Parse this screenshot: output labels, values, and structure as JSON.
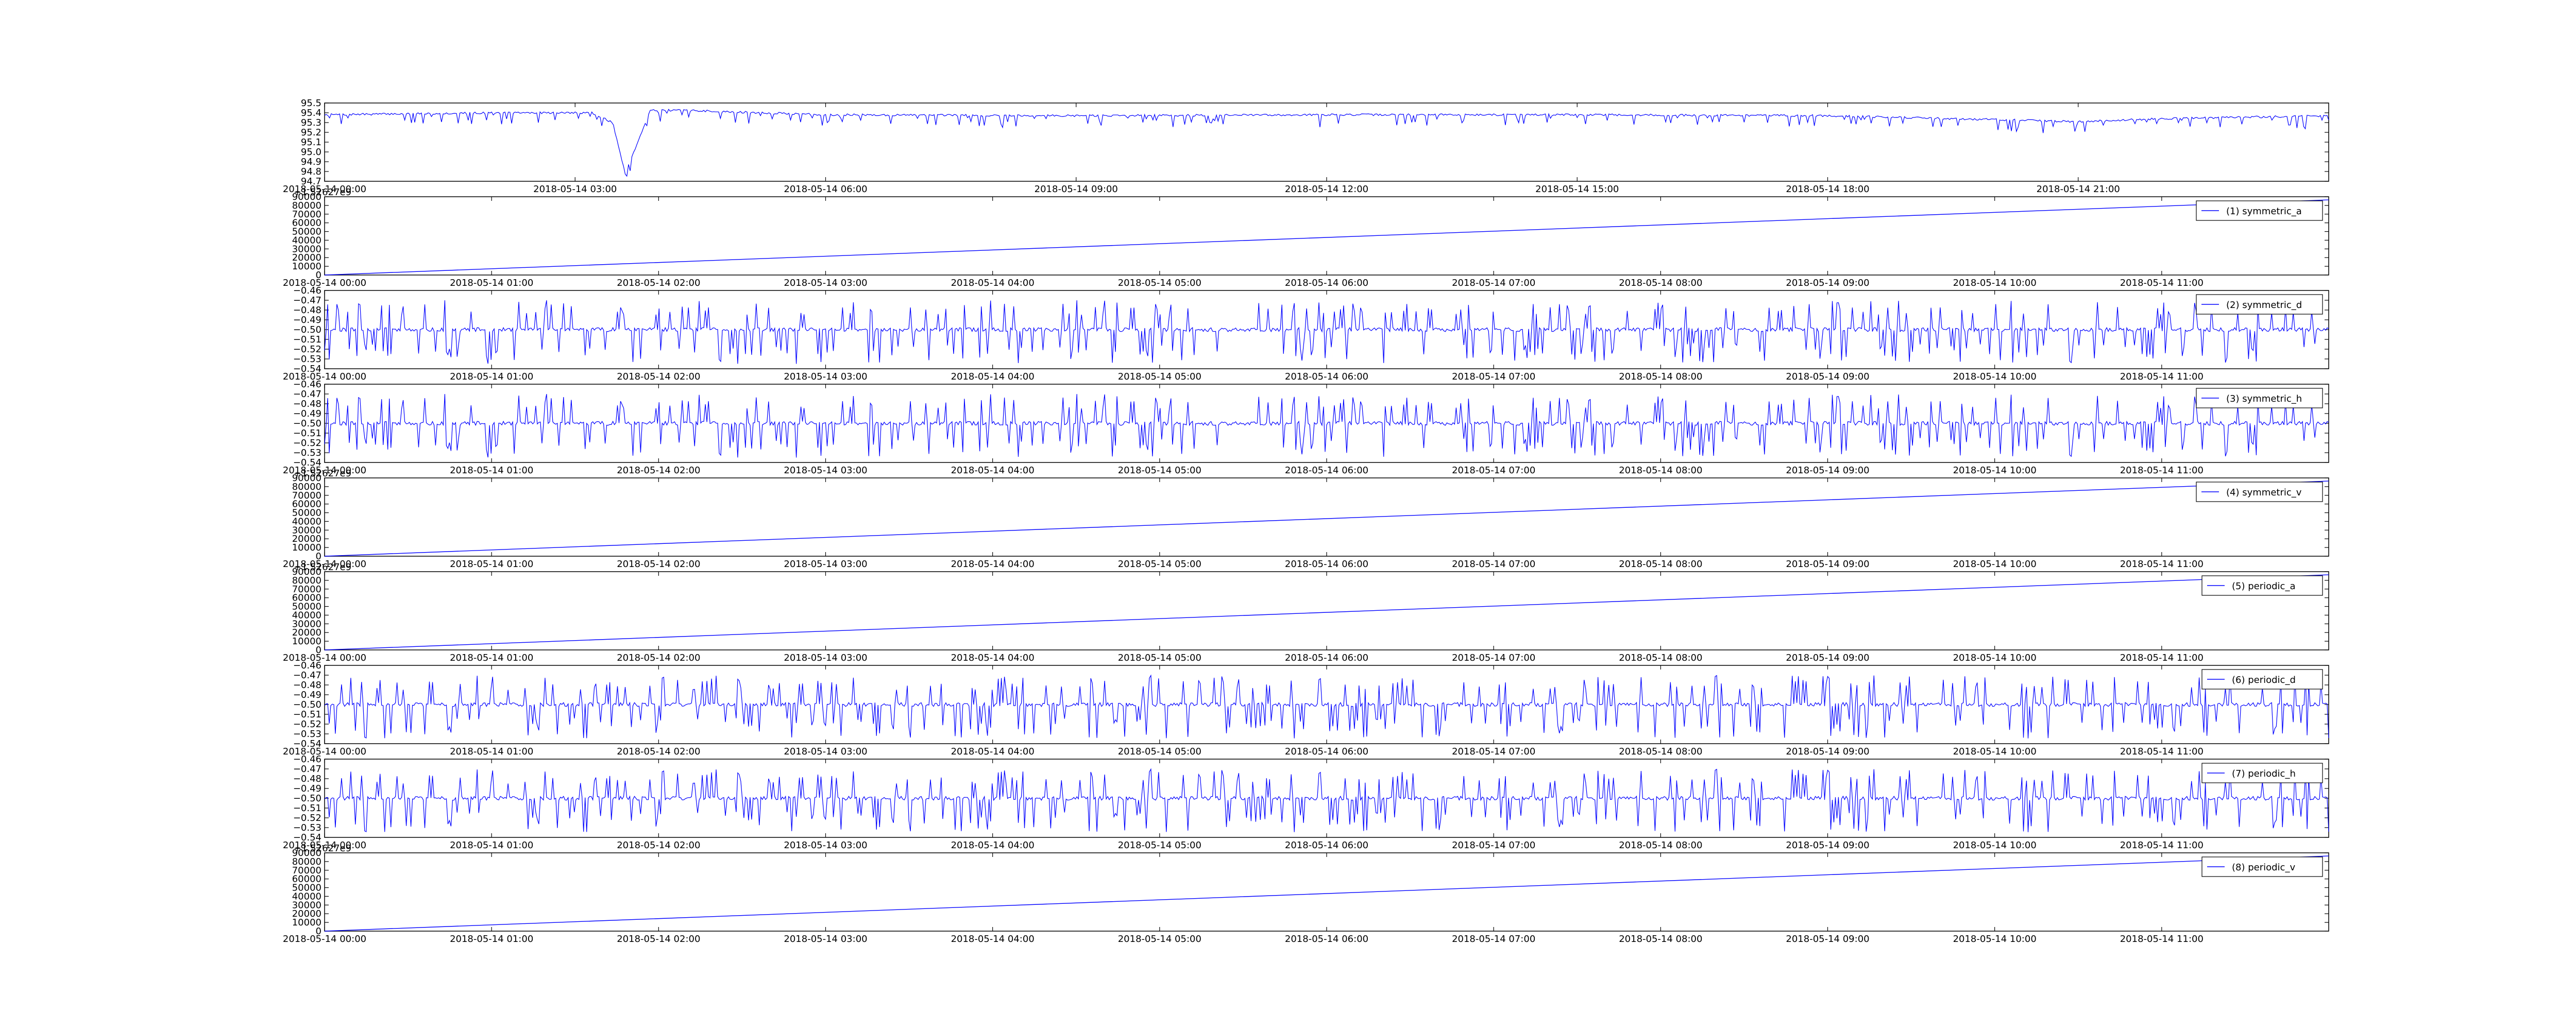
{
  "figure": {
    "background": "#ffffff",
    "line_color": "#0000ff"
  },
  "chart_data": [
    {
      "type": "line",
      "id": "p0",
      "title": "",
      "xlabel": "",
      "ylabel": "",
      "legend": null,
      "ylim": [
        94.7,
        95.5
      ],
      "yticks": [
        "94.7",
        "94.8",
        "94.9",
        "95.0",
        "95.1",
        "95.2",
        "95.3",
        "95.4",
        "95.5"
      ],
      "xlim": [
        0,
        24
      ],
      "xticks": [
        {
          "x": 0,
          "label": "2018-05-14 00:00"
        },
        {
          "x": 3,
          "label": "2018-05-14 03:00"
        },
        {
          "x": 6,
          "label": "2018-05-14 06:00"
        },
        {
          "x": 9,
          "label": "2018-05-14 09:00"
        },
        {
          "x": 12,
          "label": "2018-05-14 12:00"
        },
        {
          "x": 15,
          "label": "2018-05-14 15:00"
        },
        {
          "x": 18,
          "label": "2018-05-14 18:00"
        },
        {
          "x": 21,
          "label": "2018-05-14 21:00"
        }
      ],
      "x_unit": "hours",
      "series": [
        {
          "kind": "level",
          "x": [
            0,
            1,
            2,
            3.2,
            3.45,
            3.6,
            3.75,
            3.9,
            4.5,
            6,
            9,
            12,
            15,
            18,
            20,
            21,
            22,
            24
          ],
          "values": [
            95.38,
            95.39,
            95.4,
            95.4,
            95.3,
            94.78,
            95.1,
            95.43,
            95.42,
            95.38,
            95.37,
            95.38,
            95.38,
            95.37,
            95.33,
            95.31,
            95.34,
            95.37
          ],
          "noise": 0.01,
          "spike_down": 0.12
        }
      ]
    },
    {
      "type": "line",
      "id": "p1",
      "offset_label": "+1.52627e9",
      "ylim": [
        0,
        90000
      ],
      "yticks": [
        "0",
        "10000",
        "20000",
        "30000",
        "40000",
        "50000",
        "60000",
        "70000",
        "80000",
        "90000"
      ],
      "legend": "(1) symmetric_a",
      "series": [
        {
          "name": "(1) symmetric_a",
          "kind": "ramp",
          "x": [
            0,
            12
          ],
          "values": [
            0,
            86400
          ]
        }
      ]
    },
    {
      "type": "line",
      "id": "p2",
      "ylim": [
        -0.54,
        -0.46
      ],
      "yticks": [
        "−0.54",
        "−0.53",
        "−0.52",
        "−0.51",
        "−0.50",
        "−0.49",
        "−0.48",
        "−0.47",
        "−0.46"
      ],
      "legend": "(2) symmetric_d",
      "series": [
        {
          "name": "(2) symmetric_d",
          "kind": "noise",
          "base": -0.5,
          "amp": 0.002,
          "spike_up": 0.03,
          "spike_down": 0.035,
          "seed": 11
        }
      ]
    },
    {
      "type": "line",
      "id": "p3",
      "ylim": [
        -0.54,
        -0.46
      ],
      "yticks": [
        "−0.54",
        "−0.53",
        "−0.52",
        "−0.51",
        "−0.50",
        "−0.49",
        "−0.48",
        "−0.47",
        "−0.46"
      ],
      "legend": "(3) symmetric_h",
      "series": [
        {
          "name": "(3) symmetric_h",
          "kind": "noise",
          "base": -0.5,
          "amp": 0.002,
          "spike_up": 0.03,
          "spike_down": 0.035,
          "seed": 11
        }
      ]
    },
    {
      "type": "line",
      "id": "p4",
      "offset_label": "+1.52627e9",
      "ylim": [
        0,
        90000
      ],
      "yticks": [
        "0",
        "10000",
        "20000",
        "30000",
        "40000",
        "50000",
        "60000",
        "70000",
        "80000",
        "90000"
      ],
      "legend": "(4) symmetric_v",
      "series": [
        {
          "name": "(4) symmetric_v",
          "kind": "ramp",
          "x": [
            0,
            12
          ],
          "values": [
            0,
            86400
          ]
        }
      ]
    },
    {
      "type": "line",
      "id": "p5",
      "offset_label": "+1.52627e9",
      "ylim": [
        0,
        90000
      ],
      "yticks": [
        "0",
        "10000",
        "20000",
        "30000",
        "40000",
        "50000",
        "60000",
        "70000",
        "80000",
        "90000"
      ],
      "legend": "(5) periodic_a",
      "series": [
        {
          "name": "(5) periodic_a",
          "kind": "ramp",
          "x": [
            0,
            12
          ],
          "values": [
            0,
            86400
          ]
        }
      ]
    },
    {
      "type": "line",
      "id": "p6",
      "ylim": [
        -0.54,
        -0.46
      ],
      "yticks": [
        "−0.54",
        "−0.53",
        "−0.52",
        "−0.51",
        "−0.50",
        "−0.49",
        "−0.48",
        "−0.47",
        "−0.46"
      ],
      "legend": "(6) periodic_d",
      "series": [
        {
          "name": "(6) periodic_d",
          "kind": "noise",
          "base": -0.5,
          "amp": 0.002,
          "spike_up": 0.03,
          "spike_down": 0.035,
          "seed": 29
        }
      ]
    },
    {
      "type": "line",
      "id": "p7",
      "ylim": [
        -0.54,
        -0.46
      ],
      "yticks": [
        "−0.54",
        "−0.53",
        "−0.52",
        "−0.51",
        "−0.50",
        "−0.49",
        "−0.48",
        "−0.47",
        "−0.46"
      ],
      "legend": "(7) periodic_h",
      "series": [
        {
          "name": "(7) periodic_h",
          "kind": "noise",
          "base": -0.5,
          "amp": 0.002,
          "spike_up": 0.03,
          "spike_down": 0.035,
          "seed": 29
        }
      ]
    },
    {
      "type": "line",
      "id": "p8",
      "offset_label": "+1.52627e9",
      "ylim": [
        0,
        90000
      ],
      "yticks": [
        "0",
        "10000",
        "20000",
        "30000",
        "40000",
        "50000",
        "60000",
        "70000",
        "80000",
        "90000"
      ],
      "legend": "(8) periodic_v",
      "series": [
        {
          "name": "(8) periodic_v",
          "kind": "ramp",
          "x": [
            0,
            12
          ],
          "values": [
            0,
            86400
          ]
        }
      ]
    }
  ],
  "shared_xaxis_12h": {
    "xlim": [
      0,
      12
    ],
    "xticks": [
      {
        "x": 0,
        "label": "2018-05-14 00:00"
      },
      {
        "x": 1,
        "label": "2018-05-14 01:00"
      },
      {
        "x": 2,
        "label": "2018-05-14 02:00"
      },
      {
        "x": 3,
        "label": "2018-05-14 03:00"
      },
      {
        "x": 4,
        "label": "2018-05-14 04:00"
      },
      {
        "x": 5,
        "label": "2018-05-14 05:00"
      },
      {
        "x": 6,
        "label": "2018-05-14 06:00"
      },
      {
        "x": 7,
        "label": "2018-05-14 07:00"
      },
      {
        "x": 8,
        "label": "2018-05-14 08:00"
      },
      {
        "x": 9,
        "label": "2018-05-14 09:00"
      },
      {
        "x": 10,
        "label": "2018-05-14 10:00"
      },
      {
        "x": 11,
        "label": "2018-05-14 11:00"
      }
    ]
  }
}
